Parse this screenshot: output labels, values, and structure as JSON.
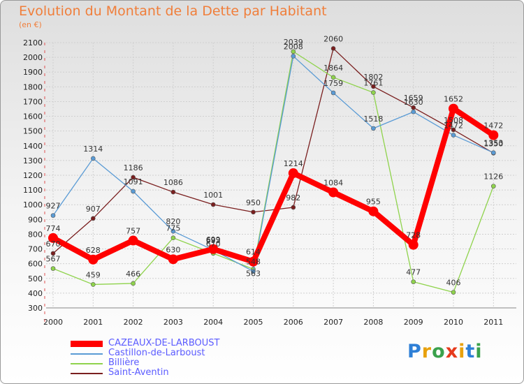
{
  "title": "Evolution du Montant de la Dette par Habitant",
  "subtitle": "(en €)",
  "logo": {
    "text": "Proxiti",
    "letter_colors": [
      "#2e7fd6",
      "#e8a10c",
      "#3aa14c",
      "#e63a1c",
      "#e8a10c",
      "#2e7fd6",
      "#3aa14c"
    ]
  },
  "chart_data": {
    "type": "line",
    "x": [
      "2000",
      "2001",
      "2002",
      "2003",
      "2004",
      "2005",
      "2006",
      "2007",
      "2008",
      "2009",
      "2010",
      "2011"
    ],
    "ylim": [
      300,
      2100
    ],
    "yticks": [
      300,
      400,
      500,
      600,
      700,
      800,
      900,
      1000,
      1100,
      1200,
      1300,
      1400,
      1500,
      1600,
      1700,
      1800,
      1900,
      2000,
      2100
    ],
    "grid": true,
    "legend_position": "bottom-left",
    "series": [
      {
        "name": "CAZEAUX-DE-LARBOUST",
        "color": "#ff0000",
        "values": [
          774,
          628,
          757,
          630,
          699,
          614,
          1214,
          1084,
          955,
          728,
          1652,
          1472
        ],
        "labels": [
          "774",
          "628",
          "757",
          "630",
          "699",
          "614",
          "1214",
          "1084",
          "955",
          "728",
          "1652",
          "1472"
        ]
      },
      {
        "name": "Castillon-de-Larboust",
        "color": "#5a9bd5",
        "values": [
          927,
          1314,
          1091,
          820,
          693,
          548,
          2008,
          1759,
          1518,
          1630,
          1472,
          1353
        ],
        "labels": [
          "927",
          "1314",
          "1091",
          "820",
          "693",
          "548",
          "2008",
          "1759",
          "1518",
          "1630",
          "1472",
          "1353"
        ]
      },
      {
        "name": "Billière",
        "color": "#8fd34c",
        "values": [
          567,
          459,
          466,
          775,
          670,
          563,
          2039,
          1864,
          1761,
          477,
          406,
          1126
        ],
        "labels": [
          "567",
          "459",
          "466",
          "775",
          "670",
          "563",
          "2039",
          "1864",
          "1761",
          "477",
          "406",
          "1126"
        ]
      },
      {
        "name": "Saint-Aventin",
        "color": "#7a1f1f",
        "values": [
          670,
          907,
          1186,
          1086,
          1001,
          950,
          982,
          2060,
          1802,
          1659,
          1508,
          1350
        ],
        "labels": [
          "670",
          "907",
          "1186",
          "1086",
          "1001",
          "950",
          "982",
          "2060",
          "1802",
          "1659",
          "1508",
          "1350"
        ]
      }
    ]
  }
}
